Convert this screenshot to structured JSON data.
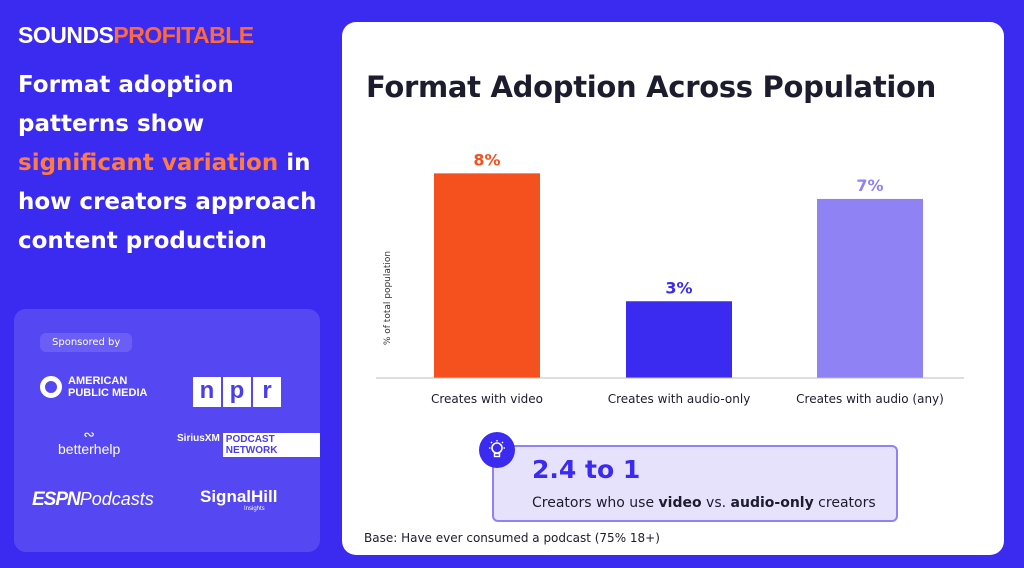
{
  "brand": {
    "part1": "SOUNDS",
    "part2": "PROFITABLE"
  },
  "headline": {
    "line_before": "Format adoption patterns show",
    "highlight": "significant variation",
    "line_after": "in how creators approach content production"
  },
  "sponsors": {
    "label": "Sponsored by",
    "apm": "AMERICAN PUBLIC MEDIA",
    "apm_line1": "AMERICAN",
    "apm_line2": "PUBLIC MEDIA",
    "npr": [
      "n",
      "p",
      "r"
    ],
    "betterhelp": "betterhelp",
    "siriusxm": "SiriusXM",
    "podcast_network": "PODCAST NETWORK",
    "espn": "ESPN",
    "podcasts": "Podcasts",
    "signalhill": "SignalHill",
    "insights": "Insights"
  },
  "colors": {
    "video": "#f4511e",
    "audio_only": "#3b2bf0",
    "audio_any": "#8f82f5",
    "background": "#3b2bf0"
  },
  "chart_data": {
    "type": "bar",
    "title": "Format Adoption Across Population",
    "ylabel": "% of total population",
    "xlabel": "",
    "categories": [
      "Creates with video",
      "Creates with audio-only",
      "Creates with audio (any)"
    ],
    "values": [
      8,
      3,
      7
    ],
    "data_labels": [
      "8%",
      "3%",
      "7%"
    ],
    "ylim": [
      0,
      8.6
    ],
    "grid": false
  },
  "callout": {
    "value": "2.4 to 1",
    "caption_pre": "Creators who use ",
    "caption_b1": "video",
    "caption_mid": " vs. ",
    "caption_b2": "audio-only",
    "caption_post": " creators"
  },
  "base_note": "Base: Have ever consumed a podcast (75% 18+)"
}
